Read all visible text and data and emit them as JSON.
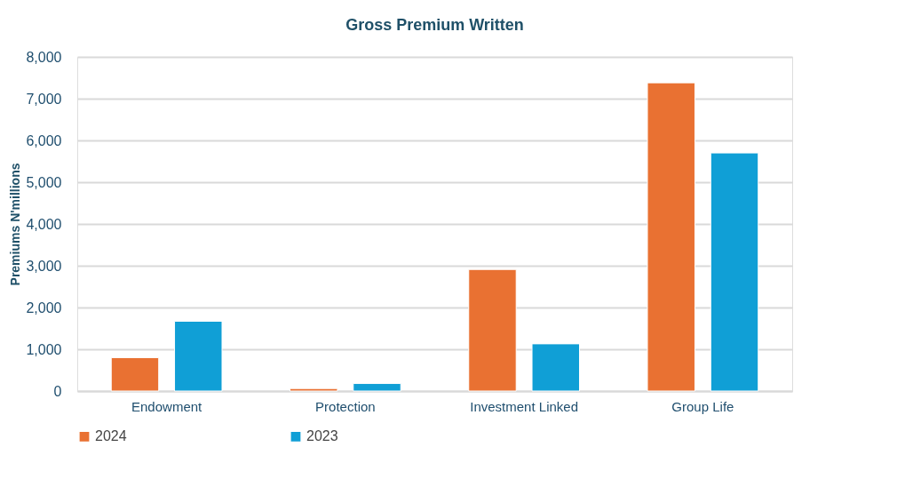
{
  "chart_data": {
    "type": "bar",
    "title": "Gross Premium Written",
    "ylabel": "Premiums N'millions",
    "categories": [
      "Endowment",
      "Protection",
      "Investment Linked",
      "Group Life"
    ],
    "series": [
      {
        "name": "2024",
        "color": "#e97132",
        "values": [
          800,
          60,
          2910,
          7380
        ]
      },
      {
        "name": "2023",
        "color": "#109fd6",
        "values": [
          1670,
          180,
          1130,
          5700
        ]
      }
    ],
    "ylim": [
      0,
      8000
    ],
    "yticks": [
      {
        "value": 0,
        "label": "0"
      },
      {
        "value": 1000,
        "label": "1,000"
      },
      {
        "value": 2000,
        "label": "2,000"
      },
      {
        "value": 3000,
        "label": "3,000"
      },
      {
        "value": 4000,
        "label": "4,000"
      },
      {
        "value": 5000,
        "label": "5,000"
      },
      {
        "value": 6000,
        "label": "6,000"
      },
      {
        "value": 7000,
        "label": "7,000"
      },
      {
        "value": 8000,
        "label": "8,000"
      }
    ],
    "grid": "y",
    "legend": "bottom"
  }
}
